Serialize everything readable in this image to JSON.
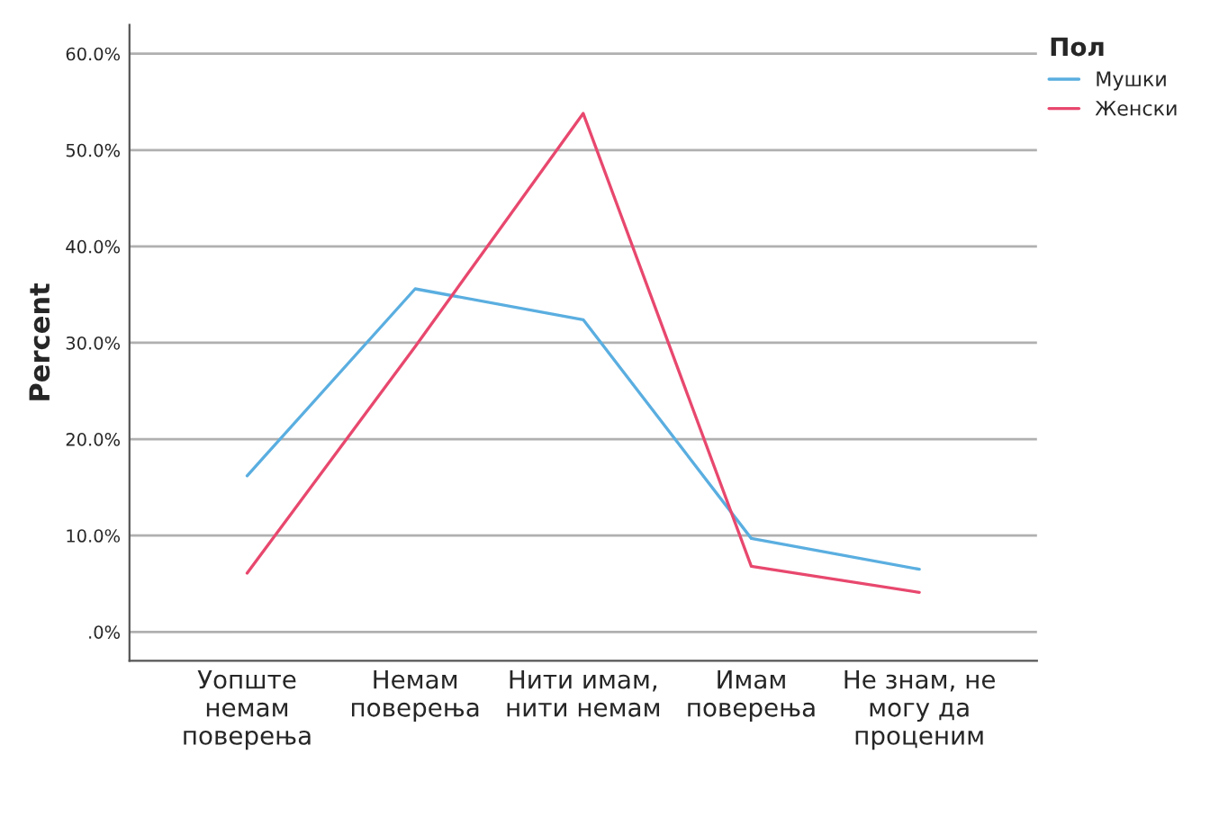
{
  "chart_data": {
    "type": "line",
    "ylabel": "Percent",
    "legend_title": "Пол",
    "legend": "top right",
    "grid": "y",
    "categories": [
      "Уопште\nнемам\nповерења",
      "Немам\nповерења",
      "Нити имам,\nнити немам",
      "Имам\nповерења",
      "Не знам, не\nмогу да\nпроценим"
    ],
    "series": [
      {
        "name": "Мушки",
        "color": "#5aaee0",
        "values": [
          16.2,
          35.6,
          32.4,
          9.7,
          6.5
        ]
      },
      {
        "name": "Женски",
        "color": "#e8486e",
        "values": [
          6.1,
          29.6,
          53.8,
          6.8,
          4.1
        ]
      }
    ],
    "ylim": [
      -3,
      63
    ],
    "yticks": [
      {
        "value": 0,
        "label": ".0%"
      },
      {
        "value": 10,
        "label": "10.0%"
      },
      {
        "value": 20,
        "label": "20.0%"
      },
      {
        "value": 30,
        "label": "30.0%"
      },
      {
        "value": 40,
        "label": "40.0%"
      },
      {
        "value": 50,
        "label": "50.0%"
      },
      {
        "value": 60,
        "label": "60.0%"
      }
    ]
  }
}
